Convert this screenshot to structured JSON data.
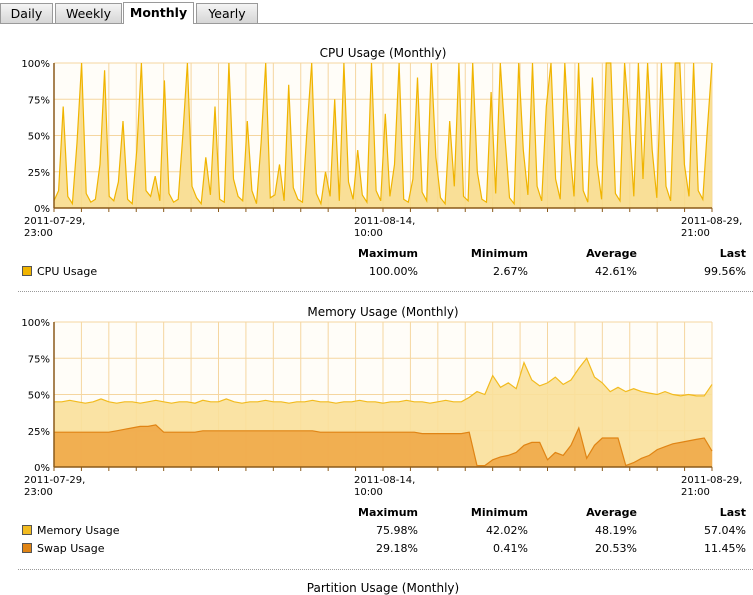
{
  "tabs": [
    {
      "label": "Daily",
      "active": false
    },
    {
      "label": "Weekly",
      "active": false
    },
    {
      "label": "Monthly",
      "active": true
    },
    {
      "label": "Yearly",
      "active": false
    }
  ],
  "stats_headers": [
    "Maximum",
    "Minimum",
    "Average",
    "Last"
  ],
  "colors": {
    "cpu_line": "#f0b400",
    "cpu_fill": "#f8dc8c",
    "mem_line": "#f2bb1f",
    "mem_fill": "#f9e09a",
    "swap_line": "#e08414",
    "swap_fill": "#f0a848",
    "grid": "#f5d6a0",
    "axis": "#8b5a1a"
  },
  "cpu": {
    "title": "CPU Usage (Monthly)",
    "legend": [
      {
        "name": "CPU Usage",
        "color": "#f0b400",
        "maximum": "100.00%",
        "minimum": "2.67%",
        "average": "42.61%",
        "last": "99.56%"
      }
    ]
  },
  "memory": {
    "title": "Memory Usage (Monthly)",
    "legend": [
      {
        "name": "Memory Usage",
        "color": "#f2bb1f",
        "maximum": "75.98%",
        "minimum": "42.02%",
        "average": "48.19%",
        "last": "57.04%"
      },
      {
        "name": "Swap Usage",
        "color": "#e08414",
        "maximum": "29.18%",
        "minimum": "0.41%",
        "average": "20.53%",
        "last": "11.45%"
      }
    ]
  },
  "next_section_title": "Partition Usage (Monthly)",
  "chart_data": [
    {
      "type": "area",
      "title": "CPU Usage (Monthly)",
      "ylim": [
        0,
        100
      ],
      "yticks": [
        "0%",
        "25%",
        "50%",
        "75%",
        "100%"
      ],
      "xticks": [
        "2011-07-29,\n23:00",
        "2011-08-14,\n10:00",
        "2011-08-29,\n21:00"
      ],
      "grid": true,
      "series": [
        {
          "name": "CPU Usage",
          "values": [
            5,
            12,
            70,
            8,
            3,
            45,
            100,
            10,
            4,
            6,
            30,
            95,
            8,
            5,
            18,
            60,
            6,
            3,
            40,
            100,
            12,
            8,
            22,
            5,
            88,
            10,
            4,
            6,
            50,
            100,
            15,
            7,
            3,
            35,
            9,
            70,
            6,
            4,
            100,
            20,
            8,
            5,
            60,
            12,
            3,
            45,
            100,
            7,
            9,
            30,
            5,
            85,
            14,
            6,
            4,
            55,
            100,
            10,
            3,
            25,
            8,
            75,
            5,
            100,
            18,
            6,
            40,
            9,
            4,
            100,
            12,
            5,
            65,
            8,
            30,
            100,
            6,
            4,
            20,
            90,
            11,
            5,
            100,
            35,
            7,
            3,
            60,
            15,
            100,
            8,
            5,
            100,
            25,
            6,
            4,
            80,
            10,
            100,
            50,
            7,
            3,
            100,
            40,
            9,
            100,
            15,
            5,
            70,
            100,
            20,
            6,
            100,
            45,
            8,
            100,
            12,
            4,
            90,
            30,
            6,
            100,
            100,
            10,
            5,
            100,
            60,
            8,
            100,
            20,
            100,
            40,
            7,
            100,
            15,
            5,
            100,
            100,
            30,
            8,
            100,
            12,
            6,
            55,
            100
          ]
        }
      ],
      "xlabel": "",
      "ylabel": ""
    },
    {
      "type": "area",
      "title": "Memory Usage (Monthly)",
      "ylim": [
        0,
        100
      ],
      "yticks": [
        "0%",
        "25%",
        "50%",
        "75%",
        "100%"
      ],
      "xticks": [
        "2011-07-29,\n23:00",
        "2011-08-14,\n10:00",
        "2011-08-29,\n21:00"
      ],
      "grid": true,
      "series": [
        {
          "name": "Memory Usage",
          "values": [
            45,
            45,
            46,
            45,
            44,
            45,
            47,
            45,
            44,
            45,
            45,
            44,
            45,
            46,
            45,
            44,
            45,
            45,
            44,
            46,
            45,
            45,
            47,
            45,
            44,
            45,
            45,
            46,
            45,
            45,
            44,
            45,
            45,
            46,
            45,
            45,
            44,
            45,
            45,
            46,
            45,
            45,
            44,
            45,
            45,
            46,
            45,
            45,
            44,
            45,
            46,
            45,
            45,
            48,
            52,
            50,
            63,
            55,
            58,
            54,
            72,
            60,
            56,
            58,
            62,
            57,
            60,
            68,
            75,
            62,
            58,
            52,
            55,
            52,
            54,
            52,
            51,
            50,
            52,
            50,
            49,
            50,
            49,
            49,
            57
          ]
        },
        {
          "name": "Swap Usage",
          "values": [
            24,
            24,
            24,
            24,
            24,
            24,
            24,
            24,
            25,
            26,
            27,
            28,
            28,
            29,
            24,
            24,
            24,
            24,
            24,
            25,
            25,
            25,
            25,
            25,
            25,
            25,
            25,
            25,
            25,
            25,
            25,
            25,
            25,
            25,
            24,
            24,
            24,
            24,
            24,
            24,
            24,
            24,
            24,
            24,
            24,
            24,
            24,
            23,
            23,
            23,
            23,
            23,
            23,
            24,
            1,
            1,
            5,
            7,
            8,
            10,
            15,
            17,
            17,
            5,
            10,
            8,
            15,
            27,
            6,
            15,
            20,
            20,
            20,
            1,
            3,
            6,
            8,
            12,
            14,
            16,
            17,
            18,
            19,
            20,
            11
          ]
        }
      ],
      "xlabel": "",
      "ylabel": ""
    }
  ]
}
